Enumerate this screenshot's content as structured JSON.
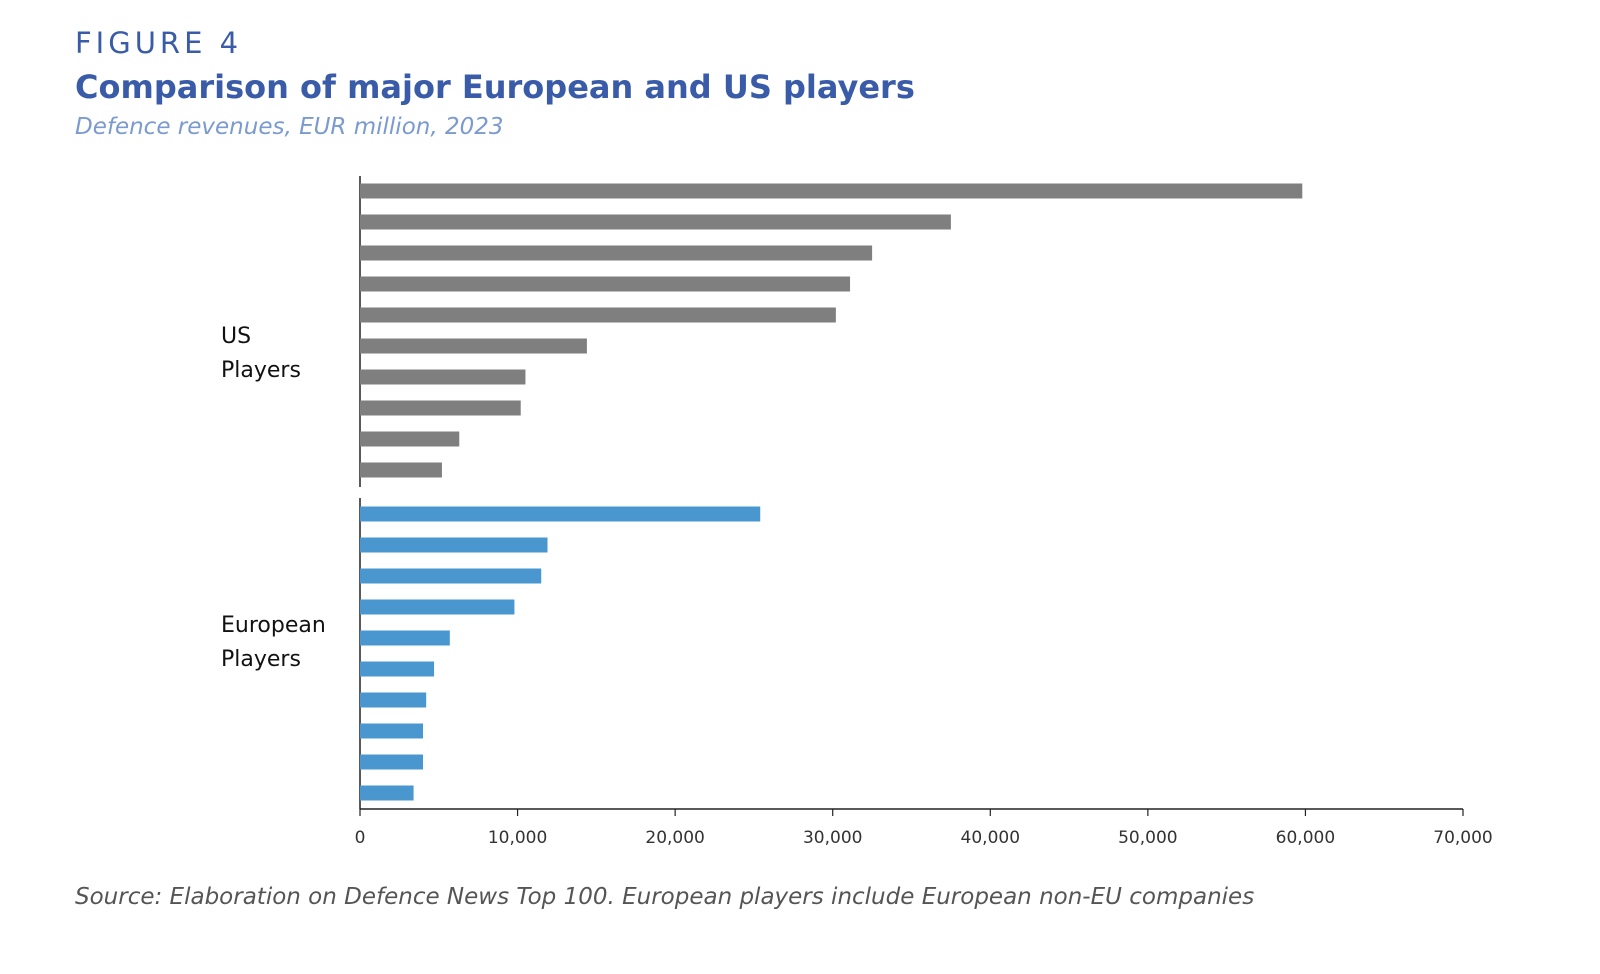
{
  "header": {
    "figure_label": "FIGURE 4",
    "title": "Comparison of major European and US players",
    "subtitle": "Defence revenues, EUR million, 2023"
  },
  "footer": {
    "source": "Source: Elaboration on Defence News Top 100. European players include European non-EU companies"
  },
  "chart_data": {
    "type": "bar",
    "orientation": "horizontal",
    "title": "Comparison of major European and US players",
    "subtitle": "Defence revenues, EUR million, 2023",
    "xlim": [
      0,
      70000
    ],
    "xticks": [
      0,
      10000,
      20000,
      30000,
      40000,
      50000,
      60000,
      70000
    ],
    "xtick_labels": [
      "0",
      "10,000",
      "20,000",
      "30,000",
      "40,000",
      "50,000",
      "60,000",
      "70,000"
    ],
    "grid": false,
    "legend": "none",
    "groups": [
      {
        "label_lines": [
          "US",
          "Players"
        ],
        "color": "#7f7f7f",
        "values": [
          59800,
          37500,
          32500,
          31100,
          30200,
          14400,
          10500,
          10200,
          6300,
          5200
        ]
      },
      {
        "label_lines": [
          "European",
          "Players"
        ],
        "color": "#4a97d0",
        "values": [
          25400,
          11900,
          11500,
          9800,
          5700,
          4700,
          4200,
          4000,
          4000,
          3400
        ]
      }
    ]
  }
}
